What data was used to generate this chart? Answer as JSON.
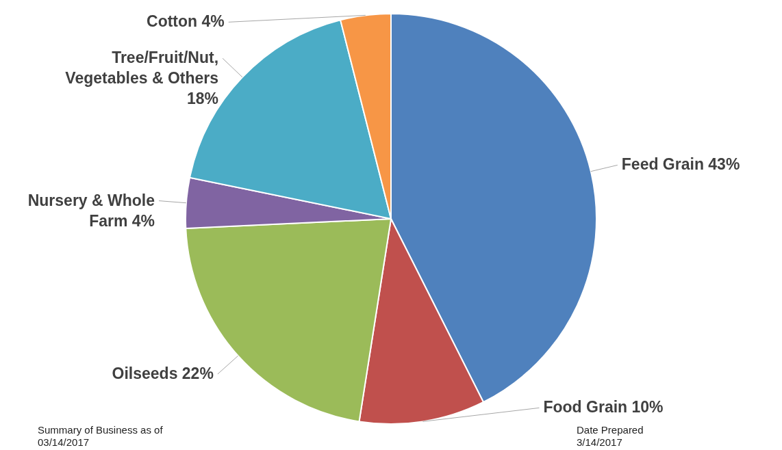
{
  "chart_data": {
    "type": "pie",
    "categories": [
      "Feed Grain",
      "Food Grain",
      "Oilseeds",
      "Nursery & Whole Farm",
      "Tree/Fruit/Nut, Vegetables & Others",
      "Cotton"
    ],
    "values": [
      43,
      10,
      22,
      4,
      18,
      4
    ],
    "colors": [
      "#4f81bd",
      "#c0504d",
      "#9bbb59",
      "#8064a2",
      "#4bacc6",
      "#f79646"
    ],
    "value_labels": [
      "43%",
      "10%",
      "22%",
      "4%",
      "18%",
      "4%"
    ],
    "annotations": [
      "Summary of Business as of 03/14/2017",
      "Date Prepared 3/14/2017"
    ]
  }
}
